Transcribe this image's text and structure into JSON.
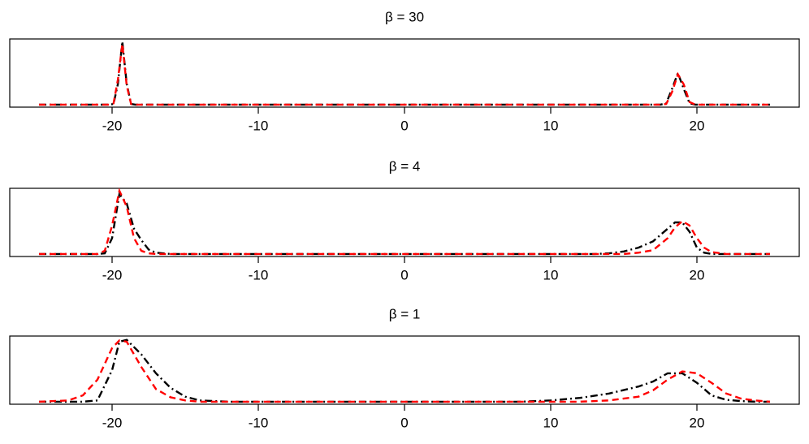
{
  "chart_data": [
    {
      "type": "line",
      "title": "β = 30",
      "x": [
        -25,
        -20.2,
        -19.9,
        -19.6,
        -19.3,
        -19.0,
        -18.7,
        -18.4,
        17.5,
        17.9,
        18.3,
        18.7,
        19.1,
        19.5,
        19.9,
        25
      ],
      "series": [
        {
          "color": "#000000",
          "dash": "dashdot",
          "values": [
            0,
            0,
            0.01,
            0.33,
            1.0,
            0.33,
            0.01,
            0,
            0,
            0.02,
            0.25,
            0.5,
            0.25,
            0.02,
            0,
            0
          ]
        },
        {
          "color": "#ff0000",
          "dash": "dashed",
          "values": [
            0,
            0,
            0.02,
            0.4,
            0.96,
            0.3,
            0.01,
            0,
            0,
            0.01,
            0.2,
            0.48,
            0.32,
            0.04,
            0,
            0
          ]
        }
      ],
      "xlim": [
        -27,
        27
      ],
      "xticks": [
        -20,
        -10,
        0,
        10,
        20
      ],
      "ylim": [
        -0.04,
        1.04
      ]
    },
    {
      "type": "line",
      "title": "β = 4",
      "x": [
        -25,
        -21,
        -20.5,
        -20,
        -19.5,
        -19,
        -18.5,
        -18,
        -17.5,
        -17,
        -16,
        13,
        14,
        15,
        16,
        17,
        18,
        18.5,
        19,
        19.5,
        20,
        20.5,
        21,
        22,
        25
      ],
      "series": [
        {
          "color": "#000000",
          "dash": "dashdot",
          "values": [
            0,
            0,
            0.01,
            0.25,
            0.95,
            0.8,
            0.4,
            0.22,
            0.07,
            0.02,
            0,
            0,
            0.01,
            0.04,
            0.1,
            0.2,
            0.4,
            0.5,
            0.5,
            0.35,
            0.1,
            0.02,
            0,
            0,
            0
          ]
        },
        {
          "color": "#ff0000",
          "dash": "dashed",
          "values": [
            0,
            0,
            0.05,
            0.45,
            1.0,
            0.75,
            0.25,
            0.05,
            0.01,
            0,
            0,
            0,
            0,
            0,
            0.02,
            0.06,
            0.25,
            0.42,
            0.52,
            0.45,
            0.25,
            0.1,
            0.03,
            0,
            0
          ]
        }
      ],
      "xlim": [
        -27,
        27
      ],
      "xticks": [
        -20,
        -10,
        0,
        10,
        20
      ],
      "ylim": [
        -0.04,
        1.04
      ]
    },
    {
      "type": "line",
      "title": "β = 1",
      "x": [
        -25,
        -23,
        -22,
        -21,
        -20,
        -19.5,
        -19,
        -18,
        -17,
        -16,
        -15,
        -14,
        -12,
        8,
        10,
        12,
        14,
        16,
        17,
        18,
        19,
        20,
        21,
        22,
        23,
        24,
        25
      ],
      "series": [
        {
          "color": "#000000",
          "dash": "dashdot",
          "values": [
            0,
            0,
            0,
            0.02,
            0.5,
            0.95,
            0.98,
            0.75,
            0.45,
            0.22,
            0.08,
            0.02,
            0,
            0,
            0.02,
            0.06,
            0.13,
            0.24,
            0.32,
            0.45,
            0.45,
            0.3,
            0.1,
            0.03,
            0.01,
            0,
            0
          ]
        },
        {
          "color": "#ff0000",
          "dash": "dashed",
          "values": [
            0,
            0.02,
            0.1,
            0.35,
            0.85,
            0.97,
            0.95,
            0.55,
            0.2,
            0.07,
            0.02,
            0,
            0,
            0,
            0,
            0,
            0.02,
            0.08,
            0.18,
            0.35,
            0.48,
            0.45,
            0.3,
            0.13,
            0.05,
            0.02,
            0
          ]
        }
      ],
      "xlim": [
        -27,
        27
      ],
      "xticks": [
        -20,
        -10,
        0,
        10,
        20
      ],
      "ylim": [
        -0.04,
        1.04
      ]
    }
  ]
}
